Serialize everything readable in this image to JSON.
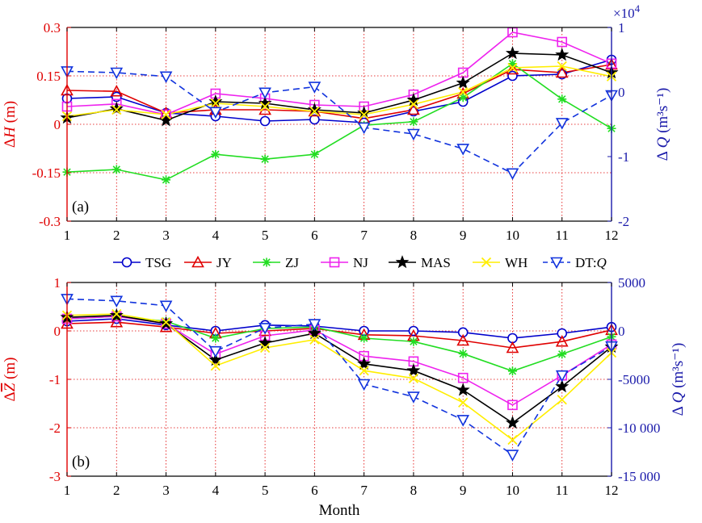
{
  "colors": {
    "TSG": "#0000cc",
    "JY": "#e00000",
    "ZJ": "#22dd22",
    "NJ": "#ee22ee",
    "MAS": "#000000",
    "WH": "#ffee00",
    "DT": "#1133dd",
    "left_axis": "#e00000",
    "right_axis": "#1a1aaa",
    "grid": "#e00000"
  },
  "chart_data": [
    {
      "type": "line",
      "panel_label": "(a)",
      "x": [
        1,
        2,
        3,
        4,
        5,
        6,
        7,
        8,
        9,
        10,
        11,
        12
      ],
      "left_axis": {
        "label_prefix": "Δ",
        "label_var": "H",
        "label_unit": "(m)",
        "ylim": [
          -0.3,
          0.3
        ],
        "ticks": [
          -0.3,
          -0.15,
          0,
          0.15,
          0.3
        ],
        "tick_labels": [
          "-0.3",
          "-0.15",
          "0",
          "0.15",
          "0.3"
        ]
      },
      "right_axis": {
        "label_prefix": "Δ",
        "label_var": "Q",
        "label_unit": "m³s⁻¹",
        "ylim": [
          -2,
          1
        ],
        "multiplier": "×10",
        "multiplier_exp": "4",
        "ticks": [
          -2,
          -1,
          0,
          1
        ],
        "tick_labels": [
          "-2",
          "-1",
          "0",
          "1"
        ]
      },
      "series": [
        {
          "name": "TSG",
          "axis": "left",
          "marker": "circle",
          "values": [
            0.08,
            0.085,
            0.035,
            0.025,
            0.01,
            0.015,
            0.005,
            0.04,
            0.07,
            0.15,
            0.155,
            0.2
          ]
        },
        {
          "name": "JY",
          "axis": "left",
          "marker": "triangle",
          "values": [
            0.105,
            0.102,
            0.035,
            0.045,
            0.045,
            0.04,
            0.018,
            0.045,
            0.095,
            0.17,
            0.16,
            0.185
          ]
        },
        {
          "name": "ZJ",
          "axis": "left",
          "marker": "asterisk",
          "values": [
            -0.148,
            -0.14,
            -0.172,
            -0.093,
            -0.108,
            -0.093,
            -0.003,
            0.008,
            0.083,
            0.188,
            0.078,
            -0.013
          ]
        },
        {
          "name": "NJ",
          "axis": "left",
          "marker": "square",
          "values": [
            0.055,
            0.063,
            0.03,
            0.095,
            0.08,
            0.06,
            0.055,
            0.092,
            0.16,
            0.285,
            0.255,
            0.188
          ]
        },
        {
          "name": "MAS",
          "axis": "left",
          "marker": "star",
          "values": [
            0.02,
            0.048,
            0.012,
            0.07,
            0.065,
            0.045,
            0.035,
            0.075,
            0.128,
            0.22,
            0.215,
            0.16
          ]
        },
        {
          "name": "WH",
          "axis": "left",
          "marker": "x",
          "values": [
            0.025,
            0.045,
            0.03,
            0.065,
            0.055,
            0.04,
            0.03,
            0.062,
            0.1,
            0.175,
            0.18,
            0.148
          ]
        },
        {
          "name": "DT:Q",
          "legend_name": "DT:",
          "legend_var": "Q",
          "axis": "right",
          "marker": "triangle-down",
          "dashed": true,
          "values": [
            3200,
            3000,
            2400,
            -3100,
            -100,
            800,
            -5500,
            -6500,
            -8800,
            -12600,
            -4800,
            -500
          ]
        }
      ]
    },
    {
      "type": "line",
      "panel_label": "(b)",
      "x": [
        1,
        2,
        3,
        4,
        5,
        6,
        7,
        8,
        9,
        10,
        11,
        12
      ],
      "xlabel": "Month",
      "xtick_labels": [
        "1",
        "2",
        "3",
        "4",
        "5",
        "6",
        "7",
        "8",
        "9",
        "10",
        "11",
        "12"
      ],
      "left_axis": {
        "label_prefix": "Δ",
        "label_var": "Z",
        "label_unit": "(m)",
        "ylim": [
          -3,
          1
        ],
        "ticks": [
          -3,
          -2,
          -1,
          0,
          1
        ],
        "tick_labels": [
          "-3",
          "-2",
          "-1",
          "0",
          "1"
        ]
      },
      "right_axis": {
        "label_prefix": "Δ",
        "label_var": "Q",
        "label_unit": "m³s⁻¹",
        "ylim": [
          -15000,
          5000
        ],
        "ticks": [
          -15000,
          -10000,
          -5000,
          0,
          5000
        ],
        "tick_labels": [
          "-15 000",
          "-10 000",
          "-5000",
          "0",
          "5000"
        ]
      },
      "series": [
        {
          "name": "TSG",
          "axis": "left",
          "marker": "circle",
          "values": [
            0.2,
            0.25,
            0.12,
            0.0,
            0.12,
            0.1,
            0.0,
            0.0,
            -0.03,
            -0.15,
            -0.05,
            0.08
          ]
        },
        {
          "name": "JY",
          "axis": "left",
          "marker": "triangle",
          "values": [
            0.15,
            0.18,
            0.08,
            -0.05,
            0.0,
            0.05,
            -0.08,
            -0.1,
            -0.2,
            -0.35,
            -0.22,
            0.02
          ]
        },
        {
          "name": "ZJ",
          "axis": "left",
          "marker": "asterisk",
          "values": [
            0.25,
            0.3,
            0.2,
            -0.15,
            0.05,
            0.08,
            -0.15,
            -0.22,
            -0.47,
            -0.83,
            -0.48,
            -0.12
          ]
        },
        {
          "name": "NJ",
          "axis": "left",
          "marker": "square",
          "values": [
            0.25,
            0.3,
            0.15,
            -0.48,
            -0.1,
            0.02,
            -0.52,
            -0.63,
            -0.97,
            -1.53,
            -0.92,
            -0.28
          ]
        },
        {
          "name": "MAS",
          "axis": "left",
          "marker": "star",
          "values": [
            0.28,
            0.32,
            0.15,
            -0.6,
            -0.25,
            -0.05,
            -0.68,
            -0.82,
            -1.22,
            -1.9,
            -1.15,
            -0.33
          ]
        },
        {
          "name": "WH",
          "axis": "left",
          "marker": "x",
          "values": [
            0.32,
            0.35,
            0.18,
            -0.72,
            -0.35,
            -0.18,
            -0.82,
            -0.98,
            -1.48,
            -2.25,
            -1.42,
            -0.45
          ]
        },
        {
          "name": "DT:Q",
          "axis": "right",
          "marker": "triangle-down",
          "dashed": true,
          "values": [
            3300,
            3100,
            2600,
            -2100,
            300,
            700,
            -5500,
            -6800,
            -9200,
            -12800,
            -4600,
            -1600
          ]
        }
      ]
    }
  ]
}
